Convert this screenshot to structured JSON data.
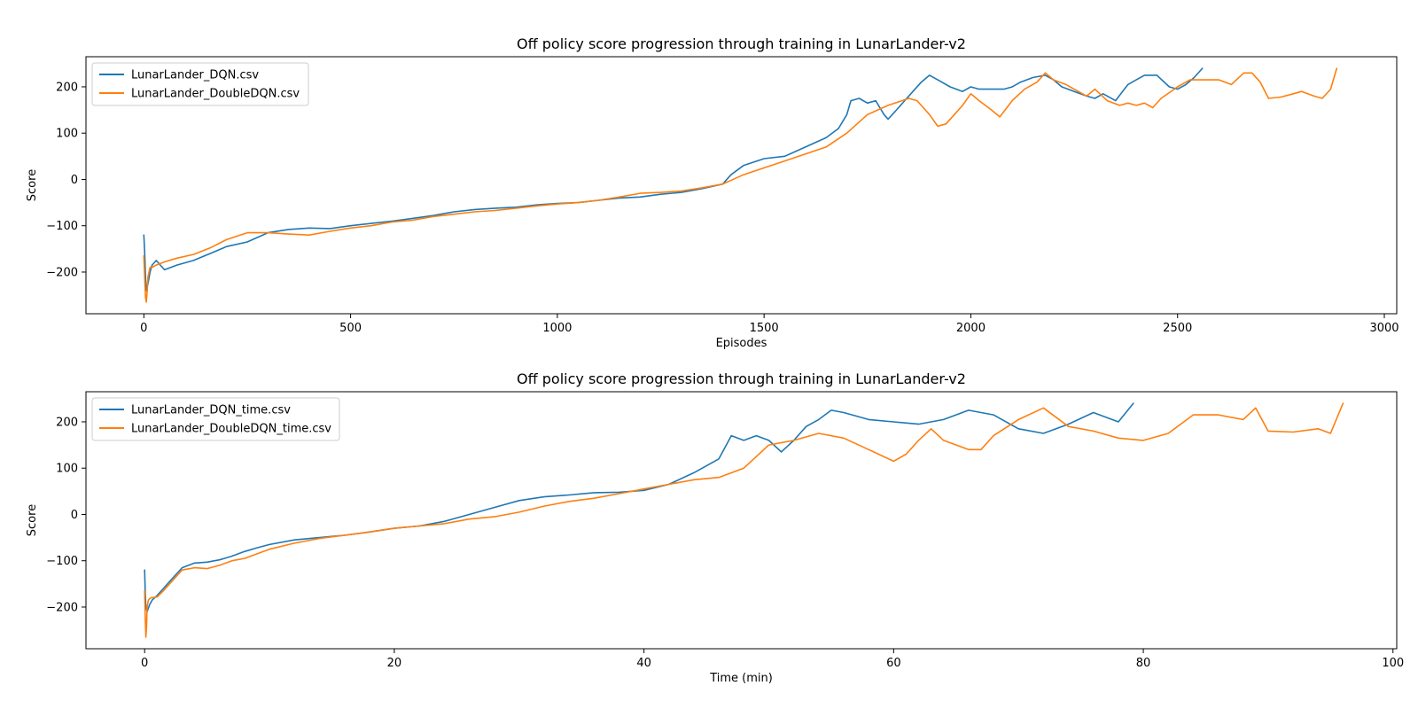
{
  "chart_data": [
    {
      "type": "line",
      "title": "Off policy score progression through training in LunarLander-v2",
      "xlabel": "Episodes",
      "ylabel": "Score",
      "xlim": [
        -140,
        3030
      ],
      "ylim": [
        -290,
        265
      ],
      "xticks": [
        0,
        500,
        1000,
        1500,
        2000,
        2500,
        3000
      ],
      "yticks": [
        -200,
        -100,
        0,
        100,
        200
      ],
      "grid": false,
      "legend_position": "top-left",
      "series": [
        {
          "name": "LunarLander_DQN.csv",
          "color": "#1f77b4",
          "x": [
            0,
            2,
            4,
            6,
            10,
            15,
            20,
            30,
            50,
            80,
            120,
            160,
            200,
            250,
            300,
            350,
            400,
            450,
            500,
            550,
            600,
            650,
            700,
            750,
            800,
            850,
            900,
            950,
            1000,
            1050,
            1100,
            1150,
            1200,
            1250,
            1300,
            1350,
            1400,
            1420,
            1450,
            1500,
            1550,
            1600,
            1650,
            1680,
            1700,
            1710,
            1730,
            1750,
            1770,
            1790,
            1800,
            1820,
            1840,
            1860,
            1880,
            1900,
            1920,
            1950,
            1980,
            2000,
            2020,
            2050,
            2080,
            2100,
            2120,
            2150,
            2180,
            2200,
            2220,
            2250,
            2280,
            2300,
            2320,
            2350,
            2380,
            2400,
            2420,
            2450,
            2480,
            2500,
            2520,
            2540,
            2560
          ],
          "y": [
            -120,
            -160,
            -210,
            -240,
            -225,
            -200,
            -185,
            -175,
            -195,
            -185,
            -175,
            -160,
            -145,
            -135,
            -115,
            -108,
            -105,
            -106,
            -100,
            -95,
            -90,
            -84,
            -78,
            -70,
            -65,
            -62,
            -60,
            -55,
            -52,
            -50,
            -45,
            -40,
            -38,
            -32,
            -28,
            -20,
            -10,
            10,
            30,
            45,
            50,
            70,
            90,
            110,
            140,
            170,
            175,
            165,
            170,
            140,
            130,
            150,
            170,
            190,
            210,
            225,
            215,
            200,
            190,
            200,
            195,
            195,
            195,
            200,
            210,
            220,
            225,
            215,
            200,
            190,
            180,
            175,
            185,
            170,
            205,
            215,
            225,
            225,
            200,
            195,
            205,
            220,
            240
          ]
        },
        {
          "name": "LunarLander_DoubleDQN.csv",
          "color": "#ff7f0e",
          "x": [
            0,
            2,
            4,
            6,
            8,
            10,
            15,
            20,
            30,
            50,
            80,
            120,
            160,
            200,
            250,
            300,
            350,
            400,
            450,
            500,
            550,
            600,
            650,
            700,
            750,
            800,
            850,
            900,
            950,
            1000,
            1050,
            1100,
            1150,
            1200,
            1250,
            1300,
            1350,
            1400,
            1450,
            1500,
            1550,
            1600,
            1650,
            1700,
            1750,
            1800,
            1850,
            1870,
            1900,
            1920,
            1940,
            1960,
            1980,
            2000,
            2020,
            2050,
            2070,
            2100,
            2130,
            2160,
            2180,
            2200,
            2230,
            2260,
            2280,
            2300,
            2330,
            2360,
            2380,
            2400,
            2420,
            2440,
            2460,
            2500,
            2530,
            2560,
            2600,
            2630,
            2660,
            2680,
            2700,
            2720,
            2750,
            2780,
            2800,
            2830,
            2850,
            2870,
            2885
          ],
          "y": [
            -165,
            -215,
            -255,
            -265,
            -240,
            -210,
            -190,
            -190,
            -185,
            -178,
            -170,
            -162,
            -148,
            -130,
            -115,
            -115,
            -118,
            -120,
            -112,
            -105,
            -100,
            -92,
            -88,
            -80,
            -75,
            -70,
            -67,
            -62,
            -57,
            -53,
            -50,
            -45,
            -38,
            -30,
            -28,
            -25,
            -18,
            -10,
            10,
            25,
            40,
            55,
            70,
            100,
            140,
            160,
            175,
            170,
            140,
            115,
            120,
            140,
            160,
            185,
            170,
            150,
            135,
            170,
            195,
            210,
            230,
            215,
            205,
            190,
            180,
            195,
            170,
            160,
            165,
            160,
            165,
            155,
            175,
            200,
            215,
            215,
            215,
            205,
            230,
            230,
            210,
            175,
            178,
            185,
            190,
            180,
            175,
            195,
            240
          ]
        }
      ]
    },
    {
      "type": "line",
      "title": "Off policy score progression through training in LunarLander-v2",
      "xlabel": "Time (min)",
      "ylabel": "Score",
      "xlim": [
        -4.7,
        100.3
      ],
      "ylim": [
        -290,
        265
      ],
      "xticks": [
        0,
        20,
        40,
        60,
        80,
        100
      ],
      "yticks": [
        -200,
        -100,
        0,
        100,
        200
      ],
      "grid": false,
      "legend_position": "top-left",
      "series": [
        {
          "name": "LunarLander_DQN_time.csv",
          "color": "#1f77b4",
          "x": [
            0,
            0.05,
            0.1,
            0.2,
            0.4,
            0.6,
            1,
            1.5,
            2,
            3,
            4,
            5,
            6,
            7,
            8,
            9,
            10,
            12,
            14,
            16,
            18,
            20,
            22,
            24,
            26,
            28,
            30,
            32,
            34,
            36,
            38,
            40,
            42,
            44,
            46,
            47,
            48,
            49,
            50,
            51,
            52,
            53,
            54,
            55,
            56,
            58,
            60,
            62,
            64,
            66,
            68,
            70,
            72,
            74,
            76,
            78,
            79.2
          ],
          "y": [
            -120,
            -170,
            -200,
            -210,
            -195,
            -185,
            -175,
            -160,
            -145,
            -115,
            -105,
            -103,
            -98,
            -90,
            -80,
            -72,
            -65,
            -55,
            -50,
            -45,
            -38,
            -30,
            -25,
            -15,
            0,
            15,
            30,
            38,
            42,
            47,
            48,
            52,
            65,
            90,
            120,
            170,
            160,
            170,
            160,
            135,
            160,
            190,
            205,
            225,
            220,
            205,
            200,
            195,
            205,
            225,
            215,
            185,
            175,
            195,
            220,
            200,
            240
          ]
        },
        {
          "name": "LunarLander_DoubleDQN_time.csv",
          "color": "#ff7f0e",
          "x": [
            0,
            0.05,
            0.1,
            0.15,
            0.2,
            0.3,
            0.5,
            1,
            1.5,
            2,
            3,
            4,
            5,
            6,
            7,
            8,
            9,
            10,
            12,
            14,
            16,
            18,
            20,
            22,
            24,
            26,
            28,
            30,
            32,
            34,
            36,
            38,
            40,
            42,
            44,
            46,
            48,
            50,
            52,
            54,
            56,
            58,
            60,
            61,
            62,
            63,
            64,
            66,
            67,
            68,
            70,
            72,
            74,
            76,
            78,
            80,
            82,
            84,
            86,
            88,
            89,
            90,
            92,
            94,
            95,
            96
          ],
          "y": [
            -165,
            -225,
            -265,
            -245,
            -200,
            -185,
            -180,
            -178,
            -165,
            -150,
            -120,
            -115,
            -117,
            -110,
            -100,
            -95,
            -85,
            -75,
            -62,
            -52,
            -45,
            -38,
            -30,
            -25,
            -20,
            -10,
            -5,
            5,
            18,
            28,
            35,
            45,
            55,
            65,
            75,
            80,
            100,
            150,
            160,
            175,
            165,
            140,
            115,
            130,
            160,
            185,
            160,
            140,
            140,
            170,
            205,
            230,
            190,
            180,
            165,
            160,
            175,
            215,
            215,
            205,
            230,
            180,
            178,
            185,
            175,
            240
          ]
        }
      ]
    }
  ]
}
